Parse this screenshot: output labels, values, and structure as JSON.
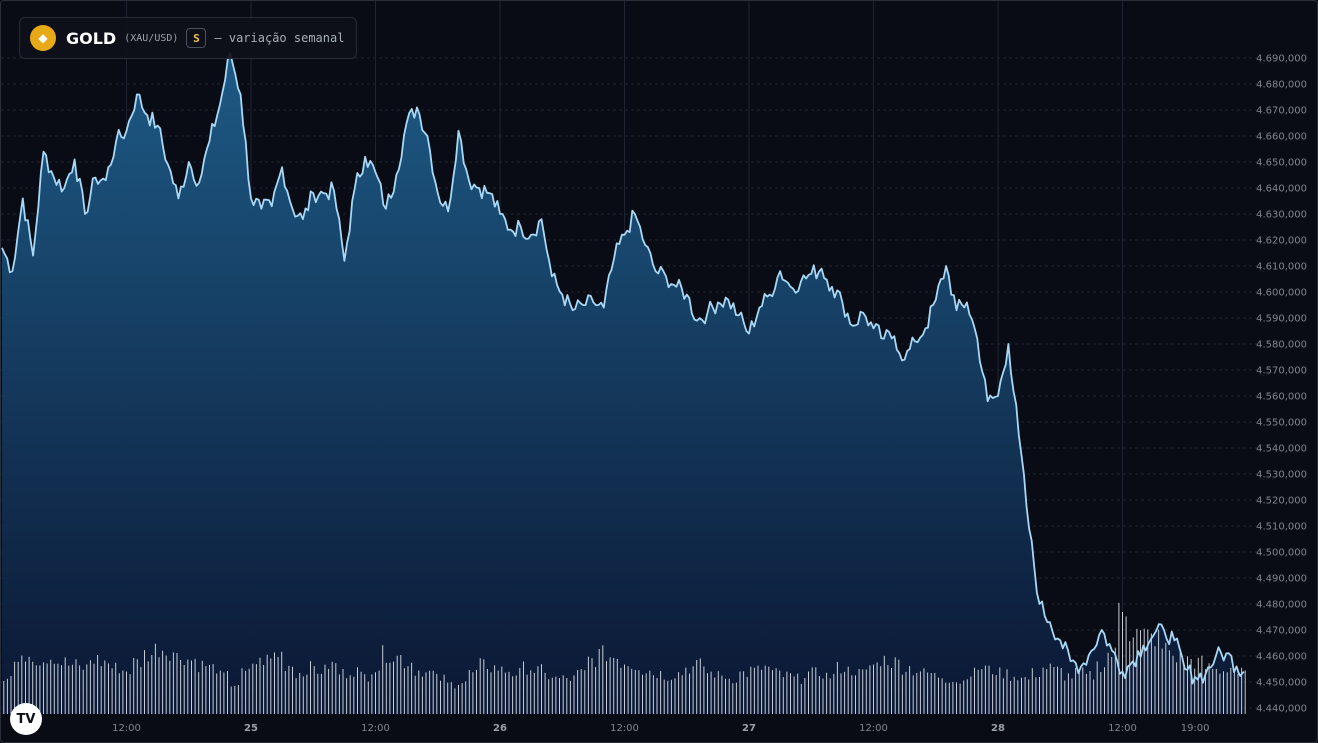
{
  "legend": {
    "symbol": "GOLD",
    "pair": "(XAU/USD)",
    "badge": "S",
    "subtitle": "— variação semanal",
    "coin_icon": "diamond-icon",
    "coin_color": "#e8a917"
  },
  "logo": {
    "text": "TV",
    "icon": "tradingview-logo-icon"
  },
  "colors": {
    "background": "#090c14",
    "line": "#a8d8f5",
    "area_top": "#1d5a85",
    "area_bottom": "#0b1733",
    "volume": "#e8ecf2",
    "grid": "#1d2330"
  },
  "chart_data": {
    "type": "area",
    "title": "GOLD (XAU/USD) — variação semanal",
    "ylim": [
      4440000,
      4695000
    ],
    "yticks": [
      4690000,
      4680000,
      4670000,
      4660000,
      4650000,
      4640000,
      4630000,
      4620000,
      4610000,
      4600000,
      4590000,
      4580000,
      4570000,
      4560000,
      4550000,
      4540000,
      4530000,
      4520000,
      4510000,
      4500000,
      4490000,
      4480000,
      4470000,
      4460000,
      4450000,
      4440000
    ],
    "ytick_labels": [
      "4.690,000",
      "4.680,000",
      "4.670,000",
      "4.660,000",
      "4.650,000",
      "4.640,000",
      "4.630,000",
      "4.620,000",
      "4.610,000",
      "4.600,000",
      "4.590,000",
      "4.580,000",
      "4.570,000",
      "4.560,000",
      "4.550,000",
      "4.540,000",
      "4.530,000",
      "4.520,000",
      "4.510,000",
      "4.500,000",
      "4.490,000",
      "4.480,000",
      "4.470,000",
      "4.460,000",
      "4.450,000",
      "4.440,000"
    ],
    "xlim": [
      0,
      120
    ],
    "xticks": [
      {
        "t": 12,
        "label": "12:00",
        "bold": false
      },
      {
        "t": 24,
        "label": "25",
        "bold": true
      },
      {
        "t": 36,
        "label": "12:00",
        "bold": false
      },
      {
        "t": 48,
        "label": "26",
        "bold": true
      },
      {
        "t": 60,
        "label": "12:00",
        "bold": false
      },
      {
        "t": 72,
        "label": "27",
        "bold": true
      },
      {
        "t": 84,
        "label": "12:00",
        "bold": false
      },
      {
        "t": 96,
        "label": "28",
        "bold": true
      },
      {
        "t": 108,
        "label": "12:00",
        "bold": false
      },
      {
        "t": 115,
        "label": "19:00",
        "bold": false
      }
    ],
    "grid": true,
    "price_series": {
      "t": [
        0,
        1,
        2,
        3,
        4,
        5,
        6,
        7,
        8,
        9,
        10,
        11,
        12,
        13,
        14,
        15,
        16,
        17,
        18,
        19,
        20,
        21,
        22,
        23,
        24,
        25,
        26,
        27,
        28,
        29,
        30,
        31,
        32,
        33,
        34,
        35,
        36,
        37,
        38,
        39,
        40,
        41,
        42,
        43,
        44,
        45,
        46,
        47,
        48,
        49,
        50,
        51,
        52,
        53,
        54,
        55,
        56,
        57,
        58,
        59,
        60,
        61,
        62,
        63,
        64,
        65,
        66,
        67,
        68,
        69,
        70,
        71,
        72,
        73,
        74,
        75,
        76,
        77,
        78,
        79,
        80,
        81,
        82,
        83,
        84,
        85,
        86,
        87,
        88,
        89,
        90,
        91,
        92,
        93,
        94,
        95,
        96,
        97,
        98,
        99,
        100,
        101,
        102,
        103,
        104,
        105,
        106,
        107,
        108,
        109,
        110,
        111,
        112,
        113,
        114,
        115,
        116,
        117,
        118,
        119,
        119.7
      ],
      "values": [
        4617000,
        4608000,
        4636000,
        4614000,
        4654000,
        4644000,
        4640000,
        4651000,
        4630000,
        4644000,
        4643000,
        4658000,
        4662000,
        4676000,
        4668000,
        4664000,
        4649000,
        4636000,
        4650000,
        4642000,
        4658000,
        4672000,
        4692000,
        4676000,
        4636000,
        4632000,
        4633000,
        4648000,
        4632000,
        4628000,
        4638000,
        4638000,
        4639000,
        4612000,
        4640000,
        4652000,
        4646000,
        4632000,
        4645000,
        4665000,
        4671000,
        4660000,
        4638000,
        4631000,
        4662000,
        4643000,
        4640000,
        4638000,
        4630000,
        4624000,
        4625000,
        4622000,
        4628000,
        4606000,
        4599000,
        4593000,
        4595000,
        4596000,
        4594000,
        4613000,
        4622000,
        4630000,
        4618000,
        4608000,
        4606000,
        4602000,
        4599000,
        4589000,
        4592000,
        4596000,
        4597000,
        4591000,
        4584000,
        4594000,
        4599000,
        4608000,
        4602000,
        4604000,
        4607000,
        4609000,
        4602000,
        4596000,
        4587000,
        4592000,
        4586000,
        4582000,
        4583000,
        4574000,
        4581000,
        4586000,
        4597000,
        4610000,
        4593000,
        4596000,
        4582000,
        4558000,
        4560000,
        4580000,
        4545000,
        4509000,
        4480000,
        4473000,
        4466000,
        4458000,
        4456000,
        4462000,
        4470000,
        4462000,
        4454000,
        4458000,
        4464000,
        4468000,
        4470000,
        4466000,
        4455000,
        4452000,
        4453000,
        4460000,
        4461000,
        4456000,
        4454000
      ]
    },
    "volume_series": {
      "ylim": [
        0,
        100
      ],
      "values": [
        28,
        38,
        44,
        40,
        42,
        38,
        36,
        34,
        40,
        38,
        34,
        32,
        38,
        44,
        48,
        46,
        42,
        40,
        36,
        34,
        28,
        22,
        30,
        38,
        40,
        44,
        36,
        30,
        34,
        32,
        36,
        30,
        32,
        28,
        34,
        44,
        42,
        38,
        32,
        30,
        26,
        22,
        24,
        30,
        36,
        34,
        32,
        30,
        34,
        32,
        28,
        26,
        26,
        30,
        40,
        44,
        42,
        38,
        36,
        32,
        30,
        28,
        30,
        34,
        36,
        30,
        28,
        26,
        30,
        32,
        34,
        30,
        28,
        26,
        30,
        30,
        28,
        34,
        32,
        30,
        36,
        40,
        38,
        34,
        32,
        30,
        28,
        26,
        24,
        30,
        34,
        32,
        30,
        28,
        26,
        30,
        34,
        32,
        28,
        30,
        28,
        36,
        44,
        80,
        60,
        58,
        56,
        48,
        42,
        40,
        38,
        34,
        32,
        34,
        30
      ]
    }
  }
}
